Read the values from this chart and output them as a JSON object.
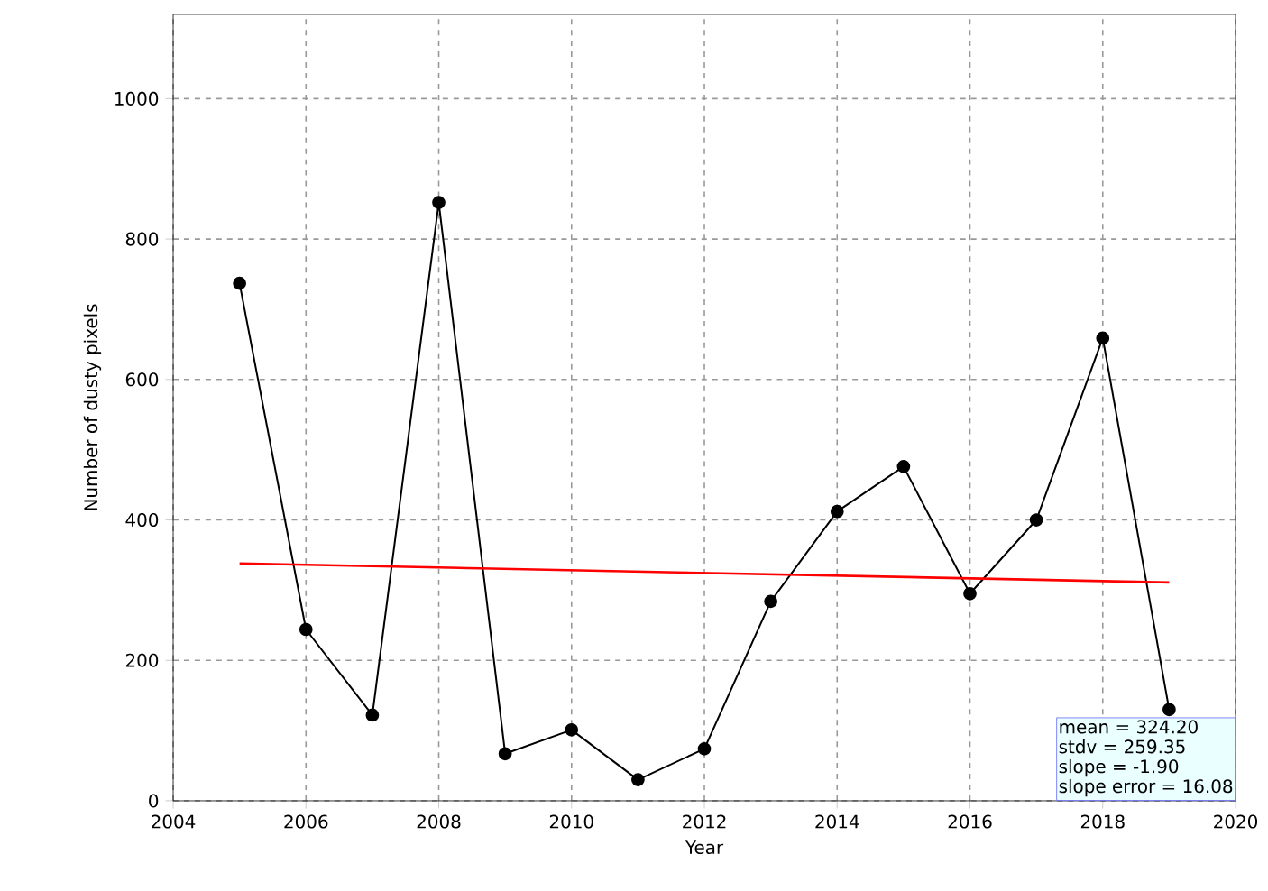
{
  "chart_data": {
    "type": "line",
    "xlabel": "Year",
    "ylabel": "Number of dusty pixels",
    "xlim": [
      2004,
      2020
    ],
    "xticks": [
      2004,
      2006,
      2008,
      2010,
      2012,
      2014,
      2016,
      2018,
      2020
    ],
    "ylim": [
      0,
      1120
    ],
    "yticks": [
      0,
      200,
      400,
      600,
      800,
      1000
    ],
    "grid": true,
    "marker": "circle",
    "series": [
      {
        "color": "#000000",
        "x": [
          2005,
          2006,
          2007,
          2008,
          2009,
          2010,
          2011,
          2012,
          2013,
          2014,
          2015,
          2016,
          2017,
          2018,
          2019
        ],
        "values": [
          737,
          244,
          122,
          852,
          67,
          101,
          30,
          74,
          284,
          412,
          476,
          295,
          400,
          659,
          130
        ]
      },
      {
        "type": "line",
        "marker": "none",
        "color": "#ff0000",
        "x": [
          2005,
          2019
        ],
        "values": [
          338,
          311
        ]
      }
    ],
    "annotations": [
      "mean              = 324.20",
      "stdv               = 259.35",
      "slope             = -1.90",
      "slope error     = 16.08"
    ]
  }
}
